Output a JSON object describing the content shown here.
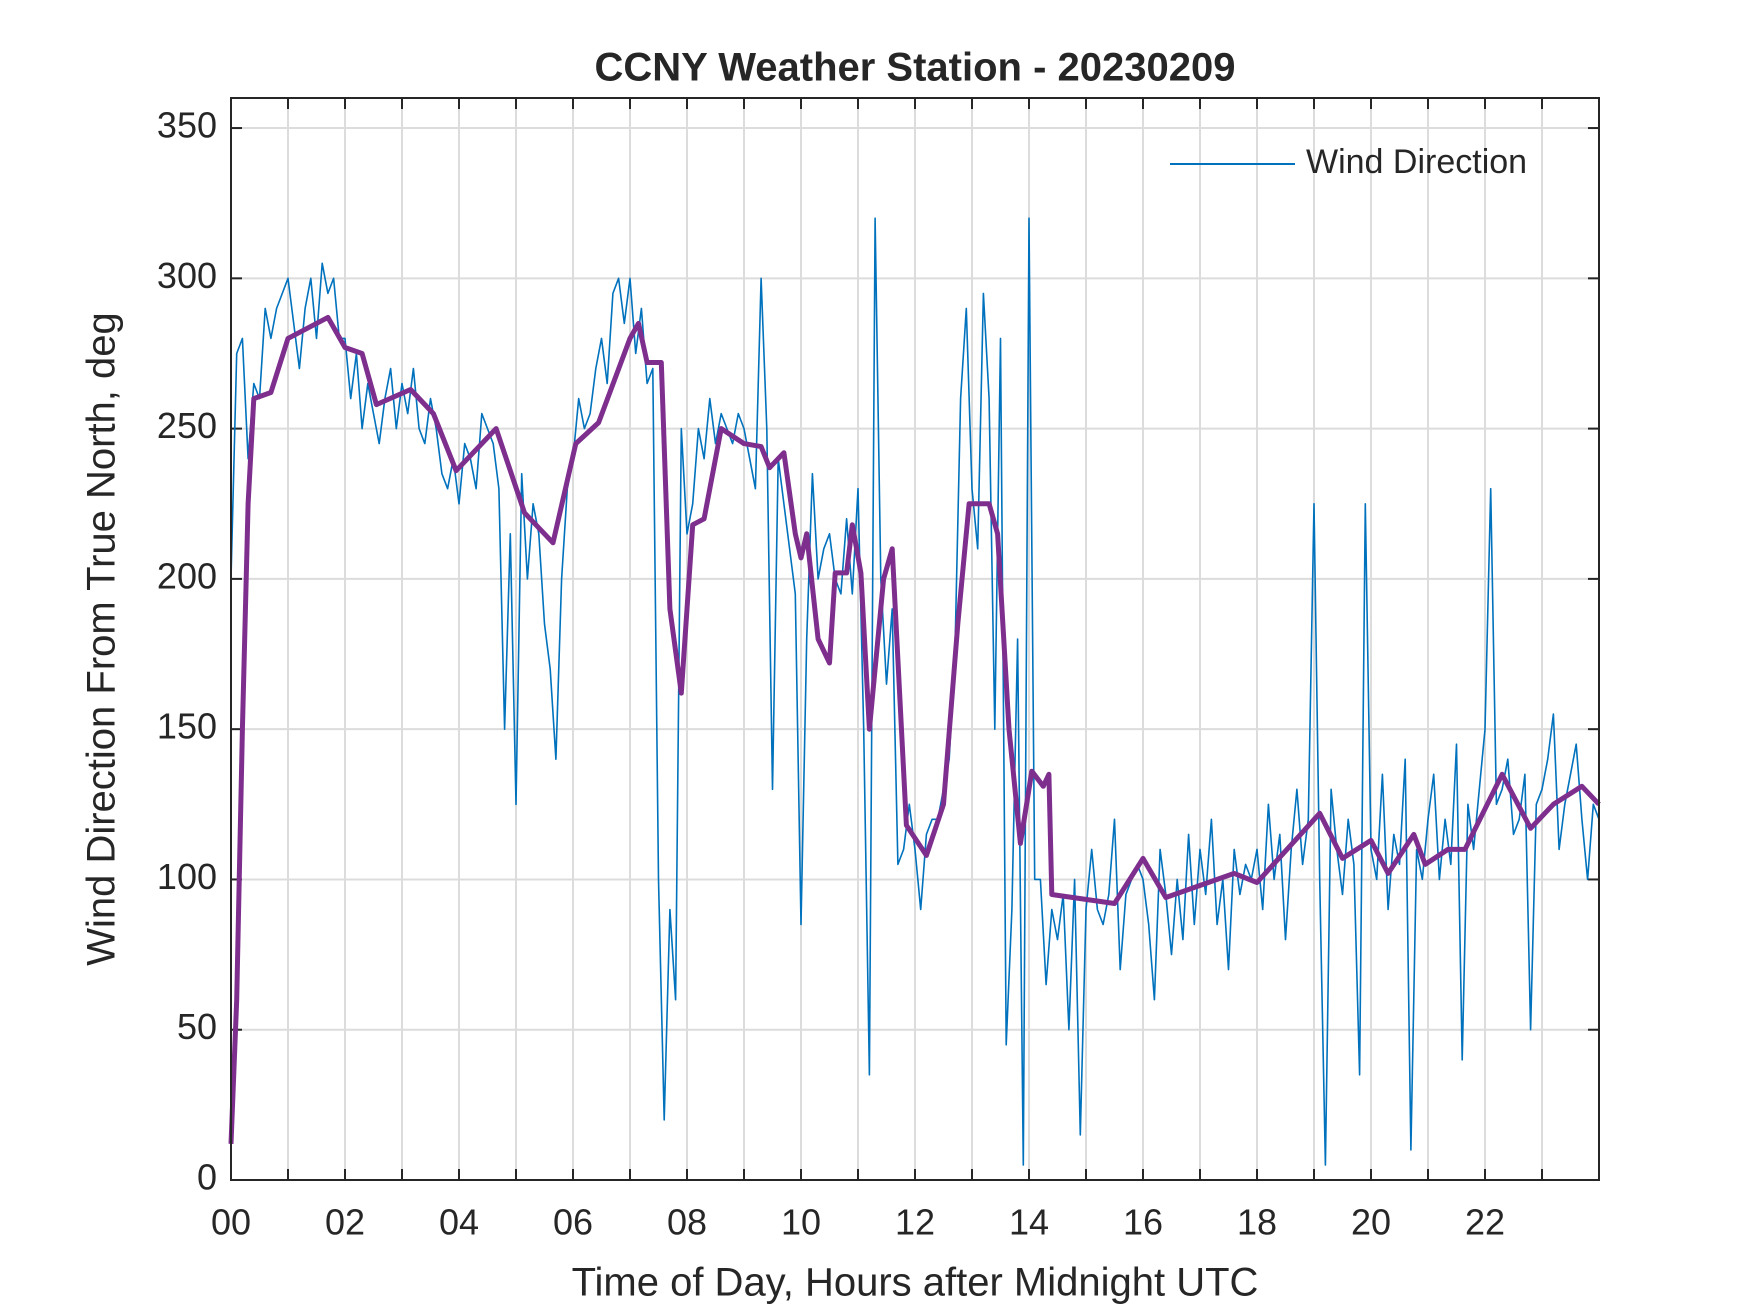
{
  "chart_data": {
    "type": "line",
    "title": "CCNY Weather Station - 20230209",
    "xlabel": "Time of Day, Hours after Midnight UTC",
    "ylabel": "Wind Direction From True North, deg",
    "xlim": [
      0,
      24
    ],
    "ylim": [
      0,
      360
    ],
    "xticks": [
      {
        "value": 0,
        "label": "00"
      },
      {
        "value": 2,
        "label": "02"
      },
      {
        "value": 4,
        "label": "04"
      },
      {
        "value": 6,
        "label": "06"
      },
      {
        "value": 8,
        "label": "08"
      },
      {
        "value": 10,
        "label": "10"
      },
      {
        "value": 12,
        "label": "12"
      },
      {
        "value": 14,
        "label": "14"
      },
      {
        "value": 16,
        "label": "16"
      },
      {
        "value": 18,
        "label": "18"
      },
      {
        "value": 20,
        "label": "20"
      },
      {
        "value": 22,
        "label": "22"
      }
    ],
    "x_minor_ticks": [
      1,
      3,
      5,
      7,
      9,
      11,
      13,
      15,
      17,
      19,
      21,
      23
    ],
    "yticks": [
      0,
      50,
      100,
      150,
      200,
      250,
      300,
      350
    ],
    "grid": true,
    "legend": "upper right",
    "series": [
      {
        "name": "Wind Direction",
        "color": "#0072BD",
        "x": [
          0,
          0.1,
          0.2,
          0.3,
          0.4,
          0.5,
          0.6,
          0.7,
          0.8,
          0.9,
          1,
          1.1,
          1.2,
          1.3,
          1.4,
          1.5,
          1.6,
          1.7,
          1.8,
          1.9,
          2,
          2.1,
          2.2,
          2.3,
          2.4,
          2.5,
          2.6,
          2.7,
          2.8,
          2.9,
          3,
          3.1,
          3.2,
          3.3,
          3.4,
          3.5,
          3.6,
          3.7,
          3.8,
          3.9,
          4,
          4.1,
          4.2,
          4.3,
          4.4,
          4.5,
          4.6,
          4.7,
          4.8,
          4.9,
          5,
          5.1,
          5.2,
          5.3,
          5.4,
          5.5,
          5.6,
          5.7,
          5.8,
          5.9,
          6,
          6.1,
          6.2,
          6.3,
          6.4,
          6.5,
          6.6,
          6.7,
          6.8,
          6.9,
          7,
          7.1,
          7.2,
          7.3,
          7.4,
          7.5,
          7.6,
          7.7,
          7.8,
          7.9,
          8,
          8.1,
          8.2,
          8.3,
          8.4,
          8.5,
          8.6,
          8.7,
          8.8,
          8.9,
          9,
          9.1,
          9.2,
          9.3,
          9.4,
          9.5,
          9.6,
          9.7,
          9.8,
          9.9,
          10,
          10.1,
          10.2,
          10.3,
          10.4,
          10.5,
          10.6,
          10.7,
          10.8,
          10.9,
          11,
          11.1,
          11.2,
          11.3,
          11.4,
          11.5,
          11.6,
          11.7,
          11.8,
          11.9,
          12,
          12.1,
          12.2,
          12.3,
          12.4,
          12.5,
          12.6,
          12.7,
          12.8,
          12.9,
          13,
          13.1,
          13.2,
          13.3,
          13.4,
          13.5,
          13.6,
          13.7,
          13.8,
          13.9,
          14,
          14.1,
          14.2,
          14.3,
          14.4,
          14.5,
          14.6,
          14.7,
          14.8,
          14.9,
          15,
          15.1,
          15.2,
          15.3,
          15.4,
          15.5,
          15.6,
          15.7,
          15.8,
          15.9,
          16,
          16.1,
          16.2,
          16.3,
          16.4,
          16.5,
          16.6,
          16.7,
          16.8,
          16.9,
          17,
          17.1,
          17.2,
          17.3,
          17.4,
          17.5,
          17.6,
          17.7,
          17.8,
          17.9,
          18,
          18.1,
          18.2,
          18.3,
          18.4,
          18.5,
          18.6,
          18.7,
          18.8,
          18.9,
          19,
          19.1,
          19.2,
          19.3,
          19.4,
          19.5,
          19.6,
          19.7,
          19.8,
          19.9,
          20,
          20.1,
          20.2,
          20.3,
          20.4,
          20.5,
          20.6,
          20.7,
          20.8,
          20.9,
          21,
          21.1,
          21.2,
          21.3,
          21.4,
          21.5,
          21.6,
          21.7,
          21.8,
          21.9,
          22,
          22.1,
          22.2,
          22.3,
          22.4,
          22.5,
          22.6,
          22.7,
          22.8,
          22.9,
          23,
          23.1,
          23.2,
          23.3,
          23.4,
          23.5,
          23.6,
          23.7,
          23.8,
          23.9,
          24
        ],
        "values": [
          200,
          275,
          280,
          240,
          265,
          260,
          290,
          280,
          290,
          295,
          300,
          285,
          270,
          290,
          300,
          280,
          305,
          295,
          300,
          280,
          280,
          260,
          275,
          250,
          265,
          255,
          245,
          260,
          270,
          250,
          265,
          255,
          270,
          250,
          245,
          260,
          250,
          235,
          230,
          240,
          225,
          245,
          240,
          230,
          255,
          250,
          245,
          230,
          150,
          215,
          125,
          235,
          200,
          225,
          215,
          185,
          170,
          140,
          200,
          230,
          240,
          260,
          250,
          255,
          270,
          280,
          265,
          295,
          300,
          285,
          300,
          275,
          290,
          265,
          270,
          100,
          20,
          90,
          60,
          250,
          215,
          225,
          250,
          240,
          260,
          245,
          255,
          250,
          245,
          255,
          250,
          240,
          230,
          300,
          250,
          130,
          240,
          225,
          210,
          195,
          85,
          180,
          235,
          200,
          210,
          215,
          200,
          195,
          220,
          195,
          230,
          150,
          35,
          320,
          200,
          165,
          190,
          105,
          110,
          125,
          110,
          90,
          115,
          120,
          120,
          130,
          140,
          175,
          260,
          290,
          230,
          210,
          295,
          260,
          150,
          280,
          45,
          90,
          180,
          5,
          320,
          100,
          100,
          65,
          90,
          80,
          95,
          50,
          100,
          15,
          90,
          110,
          90,
          85,
          95,
          120,
          70,
          95,
          100,
          105,
          100,
          85,
          60,
          110,
          95,
          75,
          100,
          80,
          115,
          85,
          110,
          95,
          120,
          85,
          100,
          70,
          110,
          95,
          105,
          100,
          110,
          90,
          125,
          100,
          115,
          80,
          110,
          130,
          105,
          120,
          225,
          100,
          5,
          130,
          110,
          95,
          120,
          105,
          35,
          225,
          110,
          100,
          135,
          90,
          115,
          105,
          140,
          10,
          110,
          100,
          120,
          135,
          100,
          120,
          105,
          145,
          40,
          125,
          110,
          130,
          150,
          230,
          125,
          130,
          140,
          115,
          120,
          135,
          50,
          125,
          130,
          140,
          155,
          110,
          125,
          135,
          145,
          120,
          100,
          125,
          120
        ]
      },
      {
        "color": "#7E2F8E",
        "x": [
          0,
          0.1,
          0.2,
          0.3,
          0.4,
          0.7,
          1,
          1.7,
          2,
          2.3,
          2.55,
          3.15,
          3.55,
          3.95,
          4.65,
          5.15,
          5.65,
          6.05,
          6.45,
          7,
          7.15,
          7.3,
          7.55,
          7.7,
          7.9,
          8.1,
          8.3,
          8.6,
          9,
          9.3,
          9.45,
          9.7,
          9.9,
          10,
          10.1,
          10.3,
          10.5,
          10.6,
          10.8,
          10.9,
          11.05,
          11.2,
          11.45,
          11.6,
          11.85,
          12.2,
          12.5,
          12.75,
          12.95,
          13.3,
          13.45,
          13.65,
          13.85,
          14.05,
          14.25,
          14.35,
          14.4,
          15.5,
          16,
          16.4,
          17.6,
          18,
          19.1,
          19.5,
          20,
          20.3,
          20.75,
          20.95,
          21.35,
          21.65,
          22.3,
          22.8,
          23.2,
          23.7,
          24
        ],
        "values": [
          12,
          60,
          150,
          225,
          260,
          262,
          280,
          287,
          277,
          275,
          258,
          263,
          255,
          236,
          250,
          222,
          212,
          245,
          252,
          280,
          285,
          272,
          272,
          190,
          162,
          218,
          220,
          250,
          245,
          244,
          237,
          242,
          215,
          207,
          215,
          180,
          172,
          202,
          202,
          218,
          202,
          150,
          200,
          210,
          118,
          108,
          125,
          185,
          225,
          225,
          215,
          150,
          112,
          136,
          131,
          135,
          95,
          92,
          107,
          94,
          102,
          99,
          122,
          107,
          113,
          102,
          115,
          105,
          110,
          110,
          135,
          117,
          125,
          131,
          125
        ]
      }
    ]
  }
}
